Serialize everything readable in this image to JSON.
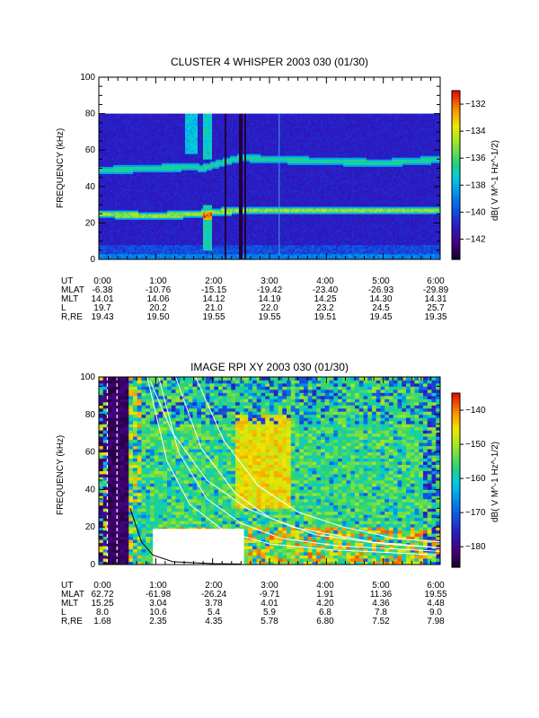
{
  "panels": [
    {
      "title": "CLUSTER 4 WHISPER 2003 030 (01/30)",
      "ylabel": "FREQUENCY (kHz)",
      "colorbar_label": "dB( V M^-1 Hz^-1/2)",
      "rows": [
        {
          "label": "UT",
          "values": [
            "0:00",
            "1:00",
            "2:00",
            "3:00",
            "4:00",
            "5:00",
            "6:00"
          ]
        },
        {
          "label": "MLAT",
          "values": [
            "-6.38",
            "-10.76",
            "-15.15",
            "-19.42",
            "-23.40",
            "-26.93",
            "-29.89"
          ]
        },
        {
          "label": "MLT",
          "values": [
            "14.01",
            "14.06",
            "14.12",
            "14.19",
            "14.25",
            "14.30",
            "14.31"
          ]
        },
        {
          "label": "L",
          "values": [
            "19.7",
            "20.2",
            "21.0",
            "22.0",
            "23.2",
            "24.5",
            "25.7"
          ]
        },
        {
          "label": "R,RE",
          "values": [
            "19.43",
            "19.50",
            "19.55",
            "19.55",
            "19.51",
            "19.45",
            "19.35"
          ]
        }
      ]
    },
    {
      "title": "IMAGE RPI XY 2003 030 (01/30)",
      "ylabel": "FREQUENCY (kHz)",
      "colorbar_label": "dB( V M^-1 Hz^-1/2)",
      "rows": [
        {
          "label": "UT",
          "values": [
            "0:00",
            "1:00",
            "2:00",
            "3:00",
            "4:00",
            "5:00",
            "6:00"
          ]
        },
        {
          "label": "MLAT",
          "values": [
            "62.72",
            "-61.98",
            "-26.24",
            "-9.71",
            "1.91",
            "11.36",
            "19.55"
          ]
        },
        {
          "label": "MLT",
          "values": [
            "15.25",
            "3.04",
            "3.78",
            "4.01",
            "4.20",
            "4.36",
            "4.48"
          ]
        },
        {
          "label": "L",
          "values": [
            "8.0",
            "10.6",
            "5.4",
            "5.9",
            "6.8",
            "7.8",
            "9.0"
          ]
        },
        {
          "label": "R,RE",
          "values": [
            "1.68",
            "2.35",
            "4.35",
            "5.78",
            "6.80",
            "7.52",
            "7.98"
          ]
        }
      ]
    }
  ],
  "chart_data": [
    {
      "type": "heatmap",
      "title": "CLUSTER 4 WHISPER 2003 030 (01/30)",
      "ylabel": "FREQUENCY (kHz)",
      "x_ticks": [
        "0:00",
        "1:00",
        "2:00",
        "3:00",
        "4:00",
        "5:00",
        "6:00"
      ],
      "xlim_hours": [
        0,
        6
      ],
      "ylim": [
        0,
        100
      ],
      "y_ticks": [
        0,
        20,
        40,
        60,
        80,
        100
      ],
      "data_top_khz": 80,
      "colorbar": {
        "label": "dB( V M^-1 Hz^-1/2)",
        "range": [
          -143.5,
          -131
        ],
        "ticks": [
          -132,
          -134,
          -136,
          -138,
          -140,
          -142
        ]
      },
      "features": [
        {
          "name": "upper emission band",
          "x_hours": [
            0,
            1.7,
            1.8,
            2.5,
            3.0,
            4.0,
            5.0,
            6.0
          ],
          "y_khz": [
            49,
            51,
            50,
            56,
            55,
            54,
            53,
            55
          ]
        },
        {
          "name": "lower emission band",
          "x_hours": [
            0,
            1.0,
            1.7,
            2.0,
            2.5,
            4.0,
            6.0
          ],
          "y_khz": [
            25,
            24,
            25,
            26,
            27,
            27,
            27
          ]
        }
      ]
    },
    {
      "type": "heatmap",
      "title": "IMAGE RPI XY 2003 030 (01/30)",
      "ylabel": "FREQUENCY (kHz)",
      "x_ticks": [
        "0:00",
        "1:00",
        "2:00",
        "3:00",
        "4:00",
        "5:00",
        "6:00"
      ],
      "xlim_hours": [
        0,
        6
      ],
      "ylim": [
        0,
        100
      ],
      "y_ticks": [
        0,
        20,
        40,
        60,
        80,
        100
      ],
      "colorbar": {
        "label": "dB( V M^-1 Hz^-1/2)",
        "range": [
          -186,
          -135
        ],
        "ticks": [
          -140,
          -150,
          -160,
          -170,
          -180
        ]
      },
      "data_gap": {
        "x_hours": [
          0.95,
          2.55
        ],
        "y_khz": [
          0,
          19
        ]
      }
    }
  ]
}
